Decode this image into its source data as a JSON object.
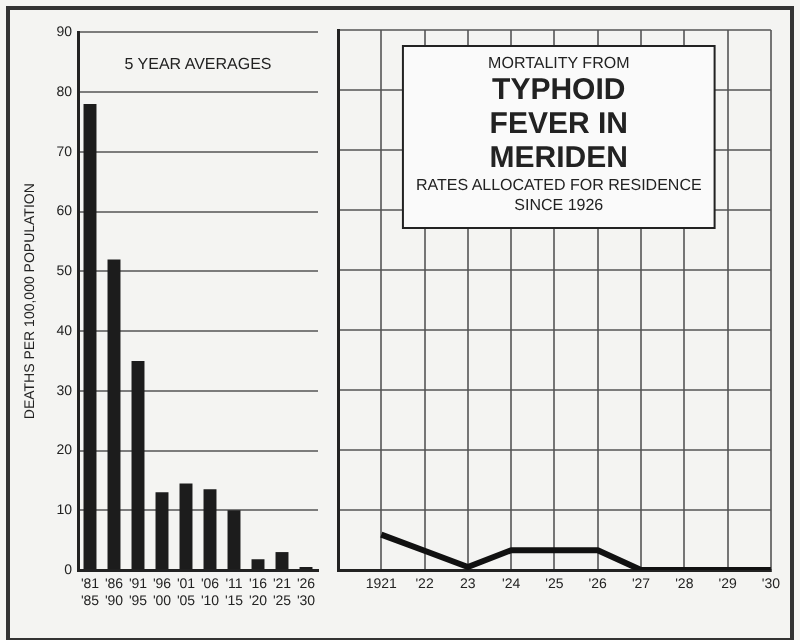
{
  "chart_data": [
    {
      "type": "bar",
      "ylabel": "DEATHS PER 100,000 POPULATION",
      "categories": [
        "'81\n'85",
        "'86\n'90",
        "'91\n'95",
        "'96\n'00",
        "'01\n'05",
        "'06\n'10",
        "'11\n'15",
        "'16\n'20",
        "'21\n'25",
        "'26\n'30"
      ],
      "values": [
        78,
        52,
        35,
        13,
        14.5,
        13.5,
        10,
        1.8,
        3,
        0.5
      ],
      "color": "#1c1c1c",
      "ylim": [
        0,
        90
      ],
      "yticks": [
        0,
        10,
        20,
        30,
        40,
        50,
        60,
        70,
        80,
        90
      ],
      "grid": "y",
      "annotations": [
        "5 YEAR AVERAGES"
      ]
    },
    {
      "type": "line",
      "x": [
        1921,
        1922,
        1923,
        1924,
        1925,
        1926,
        1927,
        1928,
        1929,
        1930
      ],
      "values": [
        5.9,
        3.2,
        0.5,
        3.3,
        3.3,
        3.3,
        0,
        0,
        0,
        0
      ],
      "color": "#111111",
      "xlim": [
        1920,
        1930
      ],
      "xticks": [
        {
          "value": 1921,
          "label": "1921"
        },
        {
          "value": 1922,
          "label": "'22"
        },
        {
          "value": 1923,
          "label": "23"
        },
        {
          "value": 1924,
          "label": "'24"
        },
        {
          "value": 1925,
          "label": "'25"
        },
        {
          "value": 1926,
          "label": "'26"
        },
        {
          "value": 1927,
          "label": "'27"
        },
        {
          "value": 1928,
          "label": "'28"
        },
        {
          "value": 1929,
          "label": "'29"
        },
        {
          "value": 1930,
          "label": "'30"
        }
      ],
      "ylim": [
        0,
        90
      ],
      "yticks": [
        0,
        10,
        20,
        30,
        40,
        50,
        60,
        70,
        80,
        90
      ],
      "grid": true,
      "tick_labels": "x",
      "marker": "none",
      "annotations": [
        "MORTALITY FROM",
        "TYPHOID FEVER IN MERIDEN",
        "RATES ALLOCATED FOR RESIDENCE SINCE 1926"
      ]
    }
  ]
}
